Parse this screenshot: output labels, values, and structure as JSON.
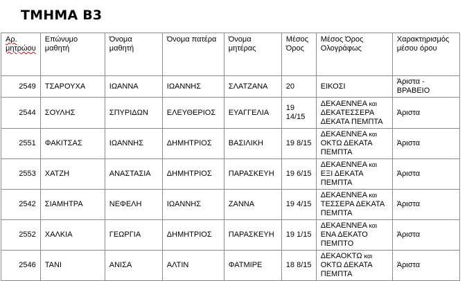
{
  "title": "ΤΜΗΜΑ Β3",
  "headers": [
    "Αρ. μητρώου",
    "Επώνυμο μαθητή",
    "Όνομα μαθητή",
    "Όνομα πατέρα",
    "Όνομα μητέρας",
    "Μέσος Όρος",
    "Μέσος Όρος Ολογράφως",
    "Χαρακτηρισμός μέσου όρου"
  ],
  "rows": [
    {
      "id": "2549",
      "surname": "ΤΣΑΡΟΥΧΑ",
      "name": "ΙΩΑΝΝΑ",
      "father": "ΙΩΑΝΝΗΣ",
      "mother": "ΣΛΑΤΖΑΝΑ",
      "avg": "20",
      "words_a": "ΕΙΚΟΣΙ",
      "words_kai": "",
      "words_b": "",
      "grade": "Άριστα - ΒΡΑΒΕΙΟ"
    },
    {
      "id": "2544",
      "surname": "ΣΟΥΛΗΣ",
      "name": "ΣΠΥΡΙΔΩΝ",
      "father": "ΕΛΕΥΘΕΡΙΟΣ",
      "mother": "ΕΥΑΓΓΕΛΙΑ",
      "avg": "19 14/15",
      "words_a": "ΔΕΚΑΕΝΝΕΑ",
      "words_kai": "και",
      "words_b": "ΔΕΚΑΤΕΣΣΕΡΑ ΔΕΚΑΤΑ ΠΕΜΠΤΑ",
      "grade": "Άριστα"
    },
    {
      "id": "2551",
      "surname": "ΦΑΚΙΤΣΑΣ",
      "name": "ΙΩΑΝΝΗΣ",
      "father": "ΔΗΜΗΤΡΙΟΣ",
      "mother": "ΒΑΣΙΛΙΚΗ",
      "avg": "19 8/15",
      "words_a": "ΔΕΚΑΕΝΝΕΑ",
      "words_kai": "και",
      "words_b": "ΟΚΤΩ ΔΕΚΑΤΑ ΠΕΜΠΤΑ",
      "grade": "Άριστα"
    },
    {
      "id": "2553",
      "surname": "ΧΑΤΖΗ",
      "name": "ΑΝΑΣΤΑΣΙΑ",
      "father": "ΔΗΜΗΤΡΙΟΣ",
      "mother": "ΠΑΡΑΣΚΕΥΗ",
      "avg": "19 6/15",
      "words_a": "ΔΕΚΑΕΝΝΕΑ",
      "words_kai": "και",
      "words_b": "ΕΞΙ ΔΕΚΑΤΑ ΠΕΜΠΤΑ",
      "grade": "Άριστα"
    },
    {
      "id": "2542",
      "surname": "ΣΙΑΜΗΤΡΑ",
      "name": "ΝΕΦΕΛΗ",
      "father": "ΙΩΑΝΝΗΣ",
      "mother": "ΖΑΝΝΑ",
      "avg": "19 4/15",
      "words_a": "ΔΕΚΑΕΝΝΕΑ",
      "words_kai": "και",
      "words_b": "ΤΕΣΣΕΡΑ ΔΕΚΑΤΑ ΠΕΜΠΤΑ",
      "grade": "Άριστα"
    },
    {
      "id": "2552",
      "surname": "ΧΑΛΚΙΑ",
      "name": "ΓΕΩΡΓΙΑ",
      "father": "ΔΗΜΗΤΡΙΟΣ",
      "mother": "ΠΑΡΑΣΚΕΥΗ",
      "avg": "19 1/15",
      "words_a": "ΔΕΚΑΕΝΝΕΑ",
      "words_kai": "και",
      "words_b": "ΕΝΑ ΔΕΚΑΤΟ ΠΕΜΠΤΟ",
      "grade": "Άριστα"
    },
    {
      "id": "2546",
      "surname": "ΤΑΝΙ",
      "name": "ΑΝΙΣΑ",
      "father": "ΑΛΤΙΝ",
      "mother": "ΦΑΤΜΙΡΕ",
      "avg": "18 8/15",
      "words_a": "ΔΕΚΑΟΚΤΩ",
      "words_kai": "και",
      "words_b": "ΟΚΤΩ ΔΕΚΑΤΑ ΠΕΜΠΤΑ",
      "grade": "Άριστα"
    }
  ]
}
